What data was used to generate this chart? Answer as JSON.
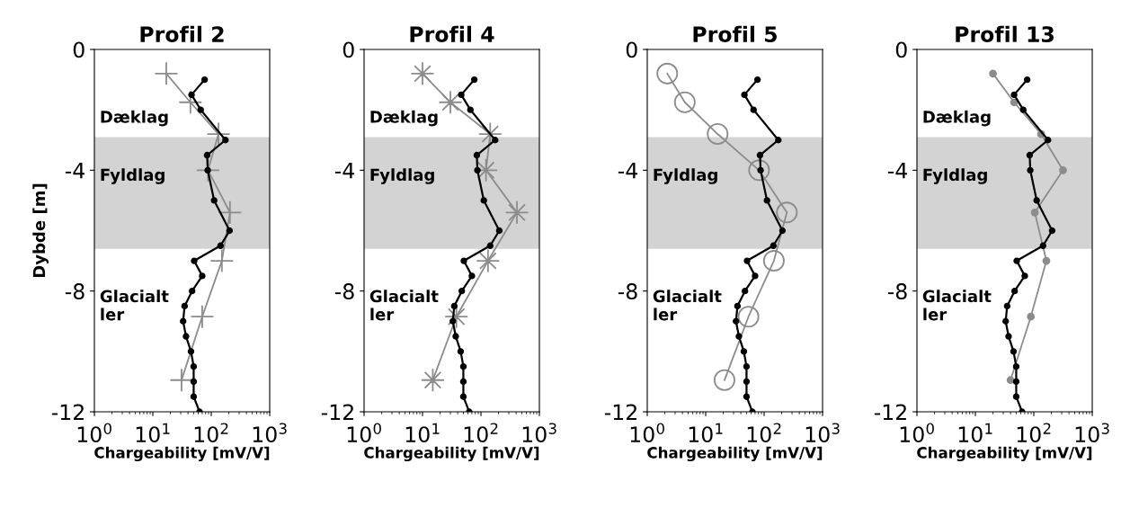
{
  "chart_data": [
    {
      "type": "line",
      "title": "Profil 2",
      "xlabel": "Chargeability [mV/V]",
      "ylabel": "Dybde [m]",
      "log": "x",
      "grid": false,
      "line_style": "solid",
      "xlim": [
        1,
        1000
      ],
      "ylim": [
        -12,
        0
      ],
      "xticks": [
        {
          "value": 1,
          "label": "10$^{0}$"
        },
        {
          "value": 10,
          "label": "10$^{1}$"
        },
        {
          "value": 100,
          "label": "10$^{2}$"
        },
        {
          "value": 1000,
          "label": "10$^{3}$"
        }
      ],
      "yticks": [
        0,
        -4,
        -8,
        -12
      ],
      "bands": [
        {
          "axis": "y",
          "from": -6.6,
          "to": -2.9,
          "color": "#d3d3d3"
        }
      ],
      "annotations": [
        "Dæklag",
        "Fyldlag",
        "Glacialt\nler"
      ],
      "series": [
        {
          "color": "#000000",
          "marker": "circle",
          "x": [
            77,
            46,
            66,
            175,
            85,
            87,
            112,
            206,
            144,
            51,
            70,
            47,
            35,
            33,
            37,
            45,
            50,
            50,
            50,
            63
          ],
          "values": [
            -1,
            -1.5,
            -2,
            -3,
            -3.5,
            -4,
            -5,
            -6,
            -6.5,
            -7,
            -7.5,
            -8,
            -8.5,
            -9,
            -9.5,
            -10,
            -10.5,
            -11,
            -11.5,
            -12
          ]
        },
        {
          "color": "#8c8c8c",
          "marker": "cross",
          "x": [
            17,
            44,
            133,
            88,
            209,
            152,
            70,
            31
          ],
          "values": [
            -0.8,
            -1.75,
            -2.8,
            -4,
            -5.4,
            -7,
            -8.85,
            -10.95
          ]
        }
      ]
    },
    {
      "type": "line",
      "title": "Profil 4",
      "xlabel": "Chargeability [mV/V]",
      "log": "x",
      "grid": false,
      "line_style": "solid",
      "xlim": [
        1,
        1000
      ],
      "ylim": [
        -12,
        0
      ],
      "xticks": [
        {
          "value": 1,
          "label": "10$^{0}$"
        },
        {
          "value": 10,
          "label": "10$^{1}$"
        },
        {
          "value": 100,
          "label": "10$^{2}$"
        },
        {
          "value": 1000,
          "label": "10$^{3}$"
        }
      ],
      "yticks": [
        0,
        -4,
        -8,
        -12
      ],
      "bands": [
        {
          "axis": "y",
          "from": -6.6,
          "to": -2.9,
          "color": "#d3d3d3"
        }
      ],
      "annotations": [
        "Dæklag",
        "Fyldlag",
        "Glacialt\nler"
      ],
      "series": [
        {
          "color": "#000000",
          "marker": "circle",
          "x": [
            77,
            46,
            66,
            175,
            85,
            87,
            112,
            206,
            144,
            51,
            70,
            47,
            35,
            33,
            37,
            45,
            50,
            50,
            50,
            63
          ],
          "values": [
            -1,
            -1.5,
            -2,
            -3,
            -3.5,
            -4,
            -5,
            -6,
            -6.5,
            -7,
            -7.5,
            -8,
            -8.5,
            -9,
            -9.5,
            -10,
            -10.5,
            -11,
            -11.5,
            -12
          ]
        },
        {
          "color": "#8c8c8c",
          "marker": "star",
          "x": [
            10,
            30,
            144,
            122,
            413,
            132,
            38,
            15
          ],
          "values": [
            -0.8,
            -1.75,
            -2.8,
            -4,
            -5.4,
            -7,
            -8.85,
            -10.95
          ]
        }
      ]
    },
    {
      "type": "line",
      "title": "Profil 5",
      "xlabel": "Chargeability [mV/V]",
      "log": "x",
      "grid": false,
      "line_style": "solid",
      "xlim": [
        1,
        1000
      ],
      "ylim": [
        -12,
        0
      ],
      "xticks": [
        {
          "value": 1,
          "label": "10$^{0}$"
        },
        {
          "value": 10,
          "label": "10$^{1}$"
        },
        {
          "value": 100,
          "label": "10$^{2}$"
        },
        {
          "value": 1000,
          "label": "10$^{3}$"
        }
      ],
      "yticks": [
        0,
        -4,
        -8,
        -12
      ],
      "bands": [
        {
          "axis": "y",
          "from": -6.6,
          "to": -2.9,
          "color": "#d3d3d3"
        }
      ],
      "annotations": [
        "Fyldlag",
        "Glacialt\nler"
      ],
      "series": [
        {
          "color": "#000000",
          "marker": "circle",
          "x": [
            77,
            46,
            66,
            175,
            85,
            87,
            112,
            206,
            144,
            51,
            70,
            47,
            35,
            33,
            37,
            45,
            50,
            50,
            50,
            63
          ],
          "values": [
            -1,
            -1.5,
            -2,
            -3,
            -3.5,
            -4,
            -5,
            -6,
            -6.5,
            -7,
            -7.5,
            -8,
            -8.5,
            -9,
            -9.5,
            -10,
            -10.5,
            -11,
            -11.5,
            -12
          ]
        },
        {
          "color": "#8c8c8c",
          "marker": "circle",
          "x": [
            2.2,
            4.4,
            16,
            82,
            245,
            147,
            54,
            21
          ],
          "values": [
            -0.8,
            -1.75,
            -2.8,
            -4,
            -5.4,
            -7,
            -8.85,
            -10.95
          ]
        }
      ]
    },
    {
      "type": "line",
      "title": "Profil 13",
      "xlabel": "Chargeability [mV/V]",
      "log": "x",
      "grid": false,
      "line_style": "solid",
      "xlim": [
        1,
        1000
      ],
      "ylim": [
        -12,
        0
      ],
      "xticks": [
        {
          "value": 1,
          "label": "10$^{0}$"
        },
        {
          "value": 10,
          "label": "10$^{1}$"
        },
        {
          "value": 100,
          "label": "10$^{2}$"
        },
        {
          "value": 1000,
          "label": "10$^{3}$"
        }
      ],
      "yticks": [
        0,
        -4,
        -8,
        -12
      ],
      "bands": [
        {
          "axis": "y",
          "from": -6.6,
          "to": -2.9,
          "color": "#d3d3d3"
        }
      ],
      "annotations": [
        "Dæklag",
        "Fyldlag",
        "Glacialt\nler"
      ],
      "series": [
        {
          "color": "#000000",
          "marker": "circle",
          "x": [
            77,
            46,
            66,
            175,
            85,
            87,
            112,
            206,
            144,
            51,
            70,
            47,
            35,
            33,
            37,
            45,
            50,
            50,
            50,
            63
          ],
          "values": [
            -1,
            -1.5,
            -2,
            -3,
            -3.5,
            -4,
            -5,
            -6,
            -6.5,
            -7,
            -7.5,
            -8,
            -8.5,
            -9,
            -9.5,
            -10,
            -10.5,
            -11,
            -11.5,
            -12
          ]
        },
        {
          "color": "#8c8c8c",
          "marker": "circle",
          "x": [
            20,
            46,
            133,
            316,
            104,
            164,
            89,
            40
          ],
          "values": [
            -0.8,
            -1.75,
            -2.8,
            -4,
            -5.4,
            -7,
            -8.85,
            -10.95
          ]
        }
      ]
    }
  ]
}
